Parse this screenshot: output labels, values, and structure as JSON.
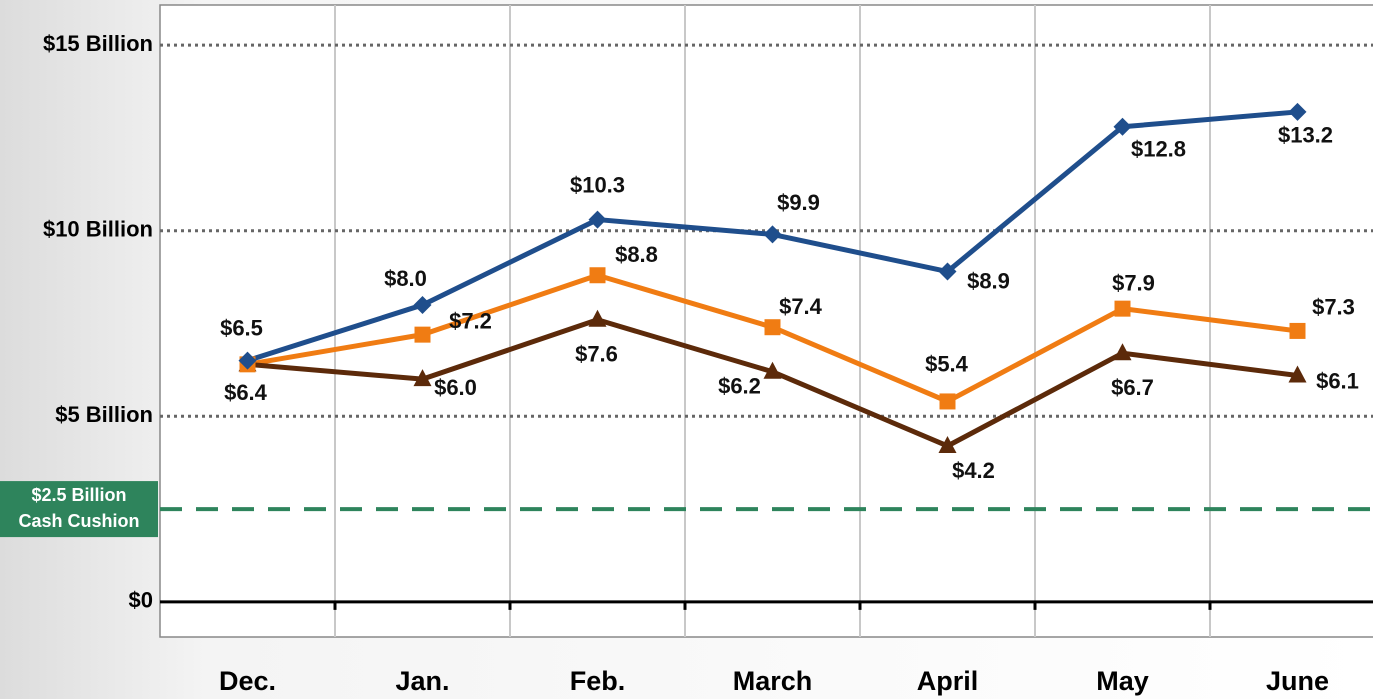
{
  "chart_data": {
    "type": "line",
    "categories": [
      "Dec.",
      "Jan.",
      "Feb.",
      "March",
      "April",
      "May",
      "June"
    ],
    "series": [
      {
        "color": "#1f4e8c",
        "marker": "diamond",
        "values": [
          6.5,
          8.0,
          10.3,
          9.9,
          8.9,
          12.8,
          13.2
        ],
        "value_labels": [
          "$6.5",
          "$8.0",
          "$10.3",
          "$9.9",
          "$8.9",
          "$12.8",
          "$13.2"
        ]
      },
      {
        "color": "#f07c13",
        "marker": "square",
        "values": [
          6.4,
          7.2,
          8.8,
          7.4,
          5.4,
          7.9,
          7.3
        ],
        "value_labels": [
          null,
          "$7.2",
          "$8.8",
          "$7.4",
          "$5.4",
          "$7.9",
          "$7.3"
        ]
      },
      {
        "color": "#5c2a0a",
        "marker": "triangle",
        "values": [
          6.4,
          6.0,
          7.6,
          6.2,
          4.2,
          6.7,
          6.1
        ],
        "value_labels": [
          "$6.4",
          "$6.0",
          "$7.6",
          "$6.2",
          "$4.2",
          "$6.7",
          "$6.1"
        ]
      }
    ],
    "ylim": [
      -1,
      16
    ],
    "yticks": [
      {
        "value": 0,
        "label": "$0"
      },
      {
        "value": 5,
        "label": "$5 Billion"
      },
      {
        "value": 10,
        "label": "$10 Billion"
      },
      {
        "value": 15,
        "label": "$15 Billion"
      }
    ],
    "threshold": {
      "value": 2.5,
      "label": [
        "$2.5 Billion",
        "Cash Cushion"
      ],
      "color": "#2e845c"
    },
    "grid": true
  }
}
